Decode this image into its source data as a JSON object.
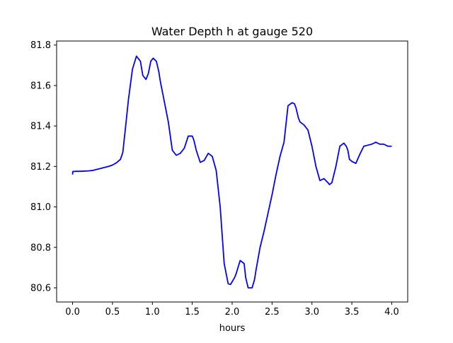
{
  "chart_data": {
    "type": "line",
    "title": "Water Depth h at gauge 520",
    "xlabel": "hours",
    "ylabel": "",
    "xlim": [
      -0.2,
      4.2
    ],
    "ylim": [
      80.53,
      81.82
    ],
    "xticks": [
      0.0,
      0.5,
      1.0,
      1.5,
      2.0,
      2.5,
      3.0,
      3.5,
      4.0
    ],
    "xtick_labels": [
      "0.0",
      "0.5",
      "1.0",
      "1.5",
      "2.0",
      "2.5",
      "3.0",
      "3.5",
      "4.0"
    ],
    "yticks": [
      80.6,
      80.8,
      81.0,
      81.2,
      81.4,
      81.6,
      81.8
    ],
    "ytick_labels": [
      "80.6",
      "80.8",
      "81.0",
      "81.2",
      "81.4",
      "81.6",
      "81.8"
    ],
    "grid": false,
    "series": [
      {
        "color": "#0000ff",
        "x": [
          0.0,
          0.003,
          0.05,
          0.1,
          0.2,
          0.25,
          0.3,
          0.35,
          0.4,
          0.45,
          0.5,
          0.55,
          0.6,
          0.63,
          0.66,
          0.7,
          0.75,
          0.8,
          0.85,
          0.88,
          0.92,
          0.95,
          0.98,
          1.01,
          1.05,
          1.08,
          1.1,
          1.15,
          1.2,
          1.25,
          1.3,
          1.35,
          1.4,
          1.45,
          1.5,
          1.52,
          1.55,
          1.6,
          1.65,
          1.7,
          1.75,
          1.8,
          1.85,
          1.9,
          1.95,
          1.98,
          2.0,
          2.03,
          2.05,
          2.1,
          2.15,
          2.17,
          2.2,
          2.25,
          2.28,
          2.3,
          2.35,
          2.4,
          2.45,
          2.5,
          2.55,
          2.6,
          2.65,
          2.7,
          2.75,
          2.78,
          2.8,
          2.83,
          2.85,
          2.9,
          2.95,
          3.0,
          3.05,
          3.1,
          3.15,
          3.2,
          3.22,
          3.25,
          3.3,
          3.35,
          3.4,
          3.43,
          3.45,
          3.47,
          3.5,
          3.55,
          3.6,
          3.65,
          3.7,
          3.75,
          3.8,
          3.85,
          3.9,
          3.95,
          4.0
        ],
        "values": [
          81.16,
          81.175,
          81.176,
          81.176,
          81.178,
          81.18,
          81.185,
          81.19,
          81.195,
          81.2,
          81.207,
          81.218,
          81.235,
          81.27,
          81.38,
          81.53,
          81.68,
          81.745,
          81.72,
          81.65,
          81.63,
          81.66,
          81.72,
          81.735,
          81.72,
          81.67,
          81.62,
          81.52,
          81.42,
          81.28,
          81.255,
          81.265,
          81.29,
          81.35,
          81.35,
          81.33,
          81.28,
          81.22,
          81.23,
          81.265,
          81.25,
          81.18,
          81.0,
          80.72,
          80.62,
          80.617,
          80.63,
          80.65,
          80.67,
          80.735,
          80.72,
          80.65,
          80.6,
          80.6,
          80.64,
          80.69,
          80.8,
          80.88,
          80.97,
          81.06,
          81.16,
          81.25,
          81.32,
          81.5,
          81.515,
          81.51,
          81.49,
          81.44,
          81.42,
          81.405,
          81.38,
          81.3,
          81.2,
          81.13,
          81.14,
          81.12,
          81.11,
          81.12,
          81.2,
          81.3,
          81.315,
          81.3,
          81.28,
          81.235,
          81.225,
          81.215,
          81.26,
          81.3,
          81.305,
          81.31,
          81.32,
          81.31,
          81.31,
          81.3,
          81.3
        ]
      }
    ]
  }
}
